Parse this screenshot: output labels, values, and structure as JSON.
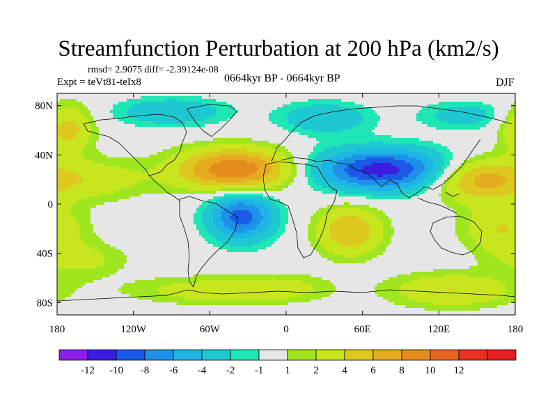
{
  "title": "Streamfunction Perturbation at 200 hPa (km2/s)",
  "stats_line": "rmsd= 2.9075 diff= -2.39124e-08",
  "experiment": "Expt = teVt81-teIx8",
  "period": "0664kyr BP - 0664kyr BP",
  "season": "DJF",
  "map": {
    "projection": "cylindrical-equidistant",
    "lon_range": [
      -180,
      180
    ],
    "lat_range": [
      -90,
      90
    ],
    "x_ticks": [
      {
        "lon": -180,
        "label": "180"
      },
      {
        "lon": -120,
        "label": "120W"
      },
      {
        "lon": -60,
        "label": "60W"
      },
      {
        "lon": 0,
        "label": "0"
      },
      {
        "lon": 60,
        "label": "60E"
      },
      {
        "lon": 120,
        "label": "120E"
      },
      {
        "lon": 180,
        "label": "180"
      }
    ],
    "y_ticks": [
      {
        "lat": 80,
        "label": "80N"
      },
      {
        "lat": 40,
        "label": "40N"
      },
      {
        "lat": 0,
        "label": "0"
      },
      {
        "lat": -40,
        "label": "40S"
      },
      {
        "lat": -80,
        "label": "80S"
      }
    ],
    "anomalies": [
      {
        "lon": -40,
        "lat": 28,
        "value": 10,
        "sx": 32,
        "sy": 12
      },
      {
        "lon": 75,
        "lat": 28,
        "value": -11,
        "sx": 38,
        "sy": 12
      },
      {
        "lon": -35,
        "lat": -10,
        "value": -9,
        "sx": 18,
        "sy": 14
      },
      {
        "lon": 50,
        "lat": -22,
        "value": 6,
        "sx": 18,
        "sy": 14
      },
      {
        "lon": 150,
        "lat": 20,
        "value": 7,
        "sx": 26,
        "sy": 12
      },
      {
        "lon": 170,
        "lat": -20,
        "value": 4,
        "sx": 22,
        "sy": 14
      },
      {
        "lon": -90,
        "lat": 75,
        "value": -4,
        "sx": 30,
        "sy": 8
      },
      {
        "lon": 30,
        "lat": 70,
        "value": -4,
        "sx": 25,
        "sy": 9
      },
      {
        "lon": 140,
        "lat": 72,
        "value": -3,
        "sx": 25,
        "sy": 8
      },
      {
        "lon": -172,
        "lat": 62,
        "value": 5,
        "sx": 14,
        "sy": 14
      },
      {
        "lon": -150,
        "lat": 20,
        "value": 3,
        "sx": 30,
        "sy": 12
      },
      {
        "lon": -160,
        "lat": -45,
        "value": 2.5,
        "sx": 25,
        "sy": 10
      },
      {
        "lon": -60,
        "lat": -70,
        "value": 3,
        "sx": 45,
        "sy": 8
      },
      {
        "lon": 130,
        "lat": -70,
        "value": 4,
        "sx": 35,
        "sy": 10
      },
      {
        "lon": 0,
        "lat": -68,
        "value": 2,
        "sx": 25,
        "sy": 8
      }
    ]
  },
  "colorbar": {
    "colors": [
      "#8c1ee8",
      "#3a1ee0",
      "#1a5ae6",
      "#1e90e8",
      "#1eb4e6",
      "#1ec8d2",
      "#1ee6b4",
      "#e6e6e6",
      "#a0e61e",
      "#c8e61e",
      "#dcc81e",
      "#e6aa1e",
      "#e68c1e",
      "#e6641e",
      "#e6321e",
      "#e61e1e"
    ],
    "labels": [
      "-12",
      "-10",
      "-8",
      "-6",
      "-4",
      "-2",
      "-1",
      "1",
      "2",
      "4",
      "6",
      "8",
      "10",
      "12"
    ]
  }
}
